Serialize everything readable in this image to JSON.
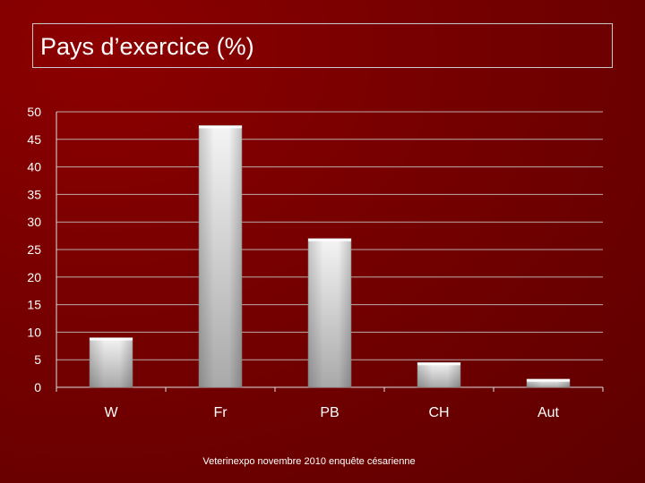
{
  "title": "Pays d’exercice (%)",
  "footer": "Veterinexpo novembre 2010 enquête césarienne",
  "colors": {
    "background": "#760000",
    "bar_light": "#f2f2f2",
    "bar_dark": "#a6a6a6",
    "gridline": "#c8c8c8",
    "text": "#ffffff"
  },
  "chart_data": {
    "type": "bar",
    "categories": [
      "W",
      "Fr",
      "PB",
      "CH",
      "Aut"
    ],
    "values": [
      9,
      47.5,
      27,
      4.5,
      1.5
    ],
    "ylim": [
      0,
      50
    ],
    "yticks": [
      0,
      5,
      10,
      15,
      20,
      25,
      30,
      35,
      40,
      45,
      50
    ],
    "grid": true,
    "legend": "none"
  }
}
